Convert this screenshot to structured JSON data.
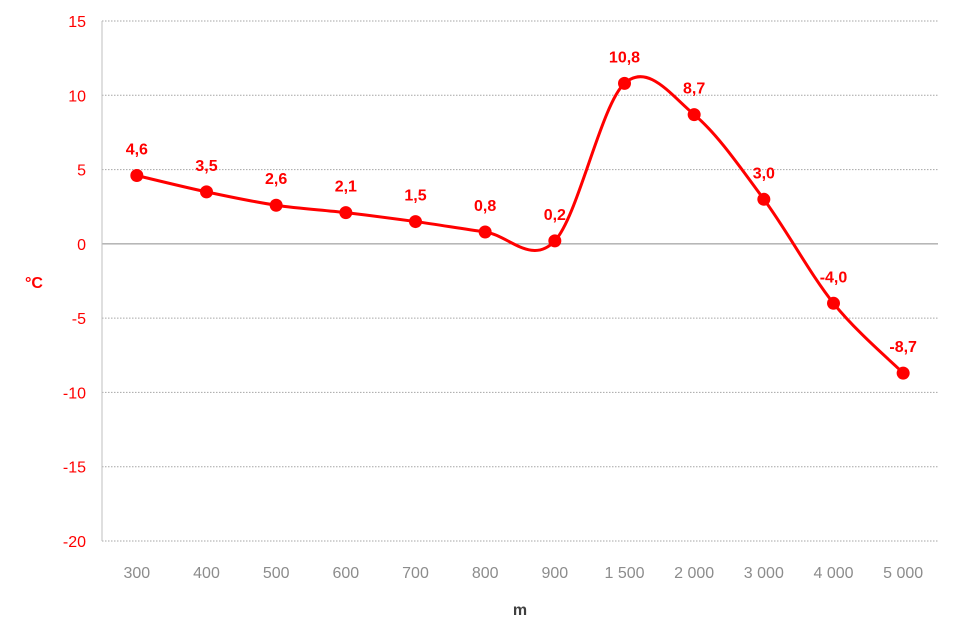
{
  "chart_data": {
    "type": "line",
    "categories": [
      "300",
      "400",
      "500",
      "600",
      "700",
      "800",
      "900",
      "1 500",
      "2 000",
      "3 000",
      "4 000",
      "5 000"
    ],
    "series": [
      {
        "values": [
          4.6,
          3.5,
          2.6,
          2.1,
          1.5,
          0.8,
          0.2,
          10.8,
          8.7,
          3.0,
          -4.0,
          -8.7
        ],
        "labels": [
          "4,6",
          "3,5",
          "2,6",
          "2,1",
          "1,5",
          "0,8",
          "0,2",
          "10,8",
          "8,7",
          "3,0",
          "-4,0",
          "-8,7"
        ]
      }
    ],
    "xlabel": "m",
    "ylabel": "°C",
    "ylim": [
      -20,
      15
    ],
    "yticks": [
      15,
      10,
      5,
      0,
      -5,
      -10,
      -15,
      -20
    ],
    "ytick_labels": [
      "15",
      "10",
      "5",
      "0",
      "-5",
      "-10",
      "-15",
      "-20"
    ],
    "grid": "horizontal dotted",
    "line_style": "smoothed",
    "colors": {
      "series": "#ff0000",
      "ytick_text": "#ff0000",
      "xtick_text": "#8c8c8c",
      "xlabel_text": "#404040",
      "ylabel_text": "#ff0000",
      "grid": "#a6a6a6",
      "axis": "#bfbfbf",
      "zero_line": "#8c8c8c"
    }
  }
}
